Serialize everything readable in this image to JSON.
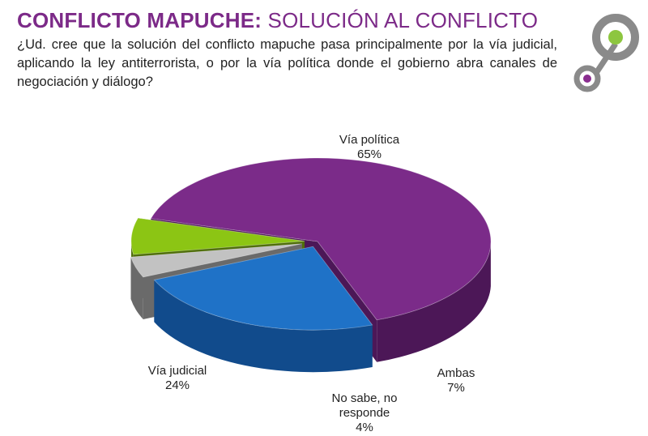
{
  "title": {
    "strong": "CONFLICTO MAPUCHE:",
    "light": "SOLUCIÓN AL CONFLICTO"
  },
  "question": "¿Ud. cree que la solución del conflicto mapuche pasa principalmente por la vía judicial, aplicando la ley antiterrorista, o por la vía política donde el gobierno abra canales de negociación y diálogo?",
  "colors": {
    "title": "#7c2a88",
    "logo_ring": "#8a8a8a",
    "logo_green": "#8dc63f",
    "logo_purple": "#8a2d8f"
  },
  "chart_data": {
    "type": "pie",
    "style": "3d-exploded",
    "slices": [
      {
        "label": "Vía política",
        "value": 65,
        "value_label": "65%",
        "color": "#7b2b89",
        "side": "#4c1757"
      },
      {
        "label": "Ambas",
        "value": 7,
        "value_label": "7%",
        "color": "#8cc514",
        "side": "#4f6e0a"
      },
      {
        "label": "No sabe, no responde",
        "label_lines": [
          "No sabe, no",
          "responde"
        ],
        "value": 4,
        "value_label": "4%",
        "color": "#c2c2c2",
        "side": "#6a6a6a"
      },
      {
        "label": "Vía judicial",
        "value": 24,
        "value_label": "24%",
        "color": "#1f72c7",
        "side": "#114b8c"
      }
    ]
  }
}
